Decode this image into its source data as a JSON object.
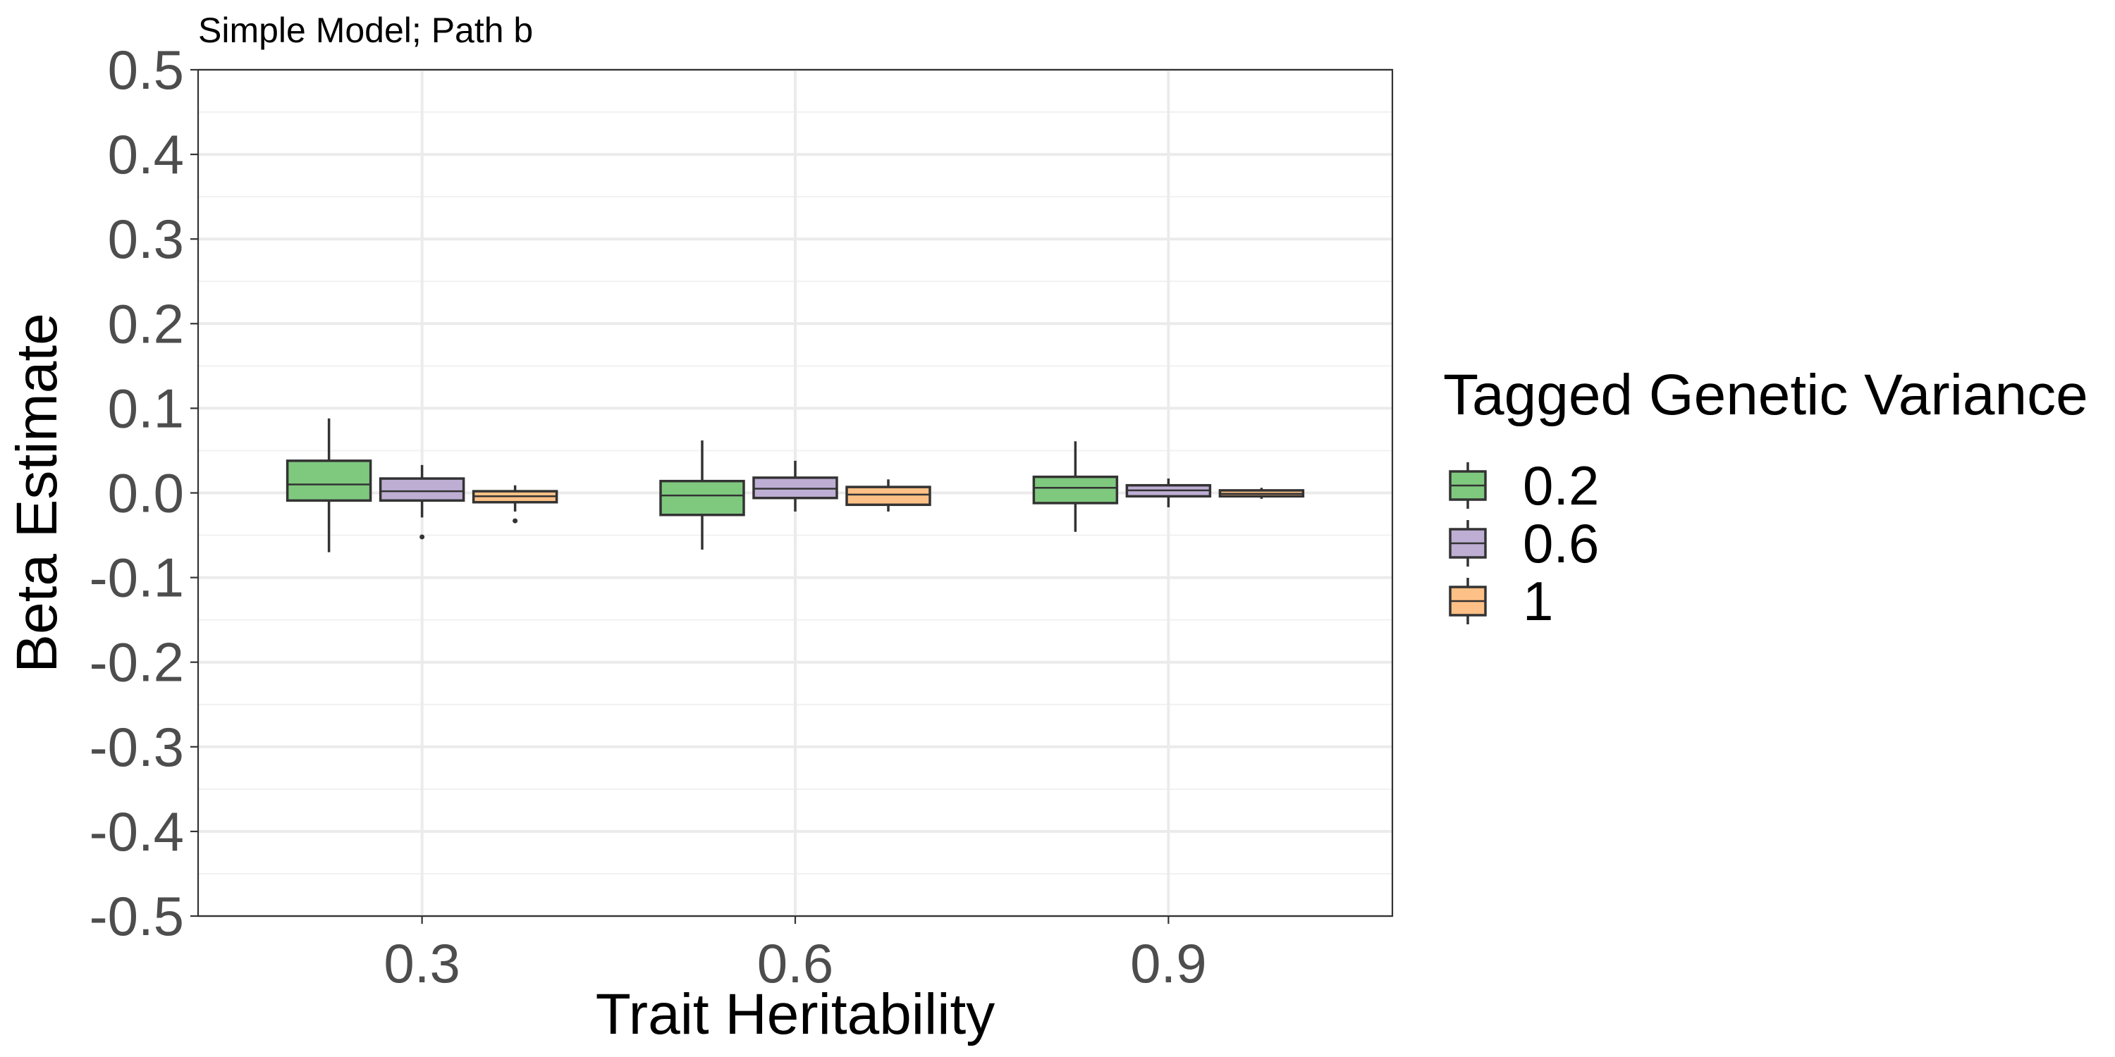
{
  "chart_data": {
    "type": "boxplot",
    "title": "Simple Model; Path b",
    "xlabel": "Trait Heritability",
    "ylabel": "Beta Estimate",
    "ylim": [
      -0.5,
      0.5
    ],
    "y_ticks": [
      "0.5",
      "0.4",
      "0.3",
      "0.2",
      "0.1",
      "0.0",
      "-0.1",
      "-0.2",
      "-0.3",
      "-0.4",
      "-0.5"
    ],
    "y_tick_values": [
      0.5,
      0.4,
      0.3,
      0.2,
      0.1,
      0.0,
      -0.1,
      -0.2,
      -0.3,
      -0.4,
      -0.5
    ],
    "categories": [
      "0.3",
      "0.6",
      "0.9"
    ],
    "grid": true,
    "legend": {
      "title": "Tagged Genetic Variance",
      "position": "right",
      "entries": [
        "0.2",
        "0.6",
        "1"
      ]
    },
    "series": [
      {
        "name": "0.2",
        "color": "#7FC97F",
        "boxes": [
          {
            "category": "0.3",
            "whisker_low": -0.07,
            "q1": -0.009,
            "median": 0.01,
            "q3": 0.038,
            "whisker_high": 0.088,
            "outliers": []
          },
          {
            "category": "0.6",
            "whisker_low": -0.067,
            "q1": -0.026,
            "median": -0.003,
            "q3": 0.014,
            "whisker_high": 0.062,
            "outliers": []
          },
          {
            "category": "0.9",
            "whisker_low": -0.046,
            "q1": -0.012,
            "median": 0.006,
            "q3": 0.019,
            "whisker_high": 0.061,
            "outliers": []
          }
        ]
      },
      {
        "name": "0.6",
        "color": "#BEAED4",
        "boxes": [
          {
            "category": "0.3",
            "whisker_low": -0.029,
            "q1": -0.009,
            "median": 0.002,
            "q3": 0.017,
            "whisker_high": 0.033,
            "outliers": [
              -0.052
            ]
          },
          {
            "category": "0.6",
            "whisker_low": -0.022,
            "q1": -0.006,
            "median": 0.005,
            "q3": 0.018,
            "whisker_high": 0.038,
            "outliers": []
          },
          {
            "category": "0.9",
            "whisker_low": -0.017,
            "q1": -0.004,
            "median": 0.003,
            "q3": 0.009,
            "whisker_high": 0.017,
            "outliers": []
          }
        ]
      },
      {
        "name": "1",
        "color": "#FDC086",
        "boxes": [
          {
            "category": "0.3",
            "whisker_low": -0.022,
            "q1": -0.011,
            "median": -0.004,
            "q3": 0.002,
            "whisker_high": 0.009,
            "outliers": [
              -0.033
            ]
          },
          {
            "category": "0.6",
            "whisker_low": -0.022,
            "q1": -0.014,
            "median": -0.002,
            "q3": 0.007,
            "whisker_high": 0.016,
            "outliers": []
          },
          {
            "category": "0.9",
            "whisker_low": -0.007,
            "q1": -0.004,
            "median": -0.001,
            "q3": 0.003,
            "whisker_high": 0.006,
            "outliers": []
          }
        ]
      }
    ]
  }
}
